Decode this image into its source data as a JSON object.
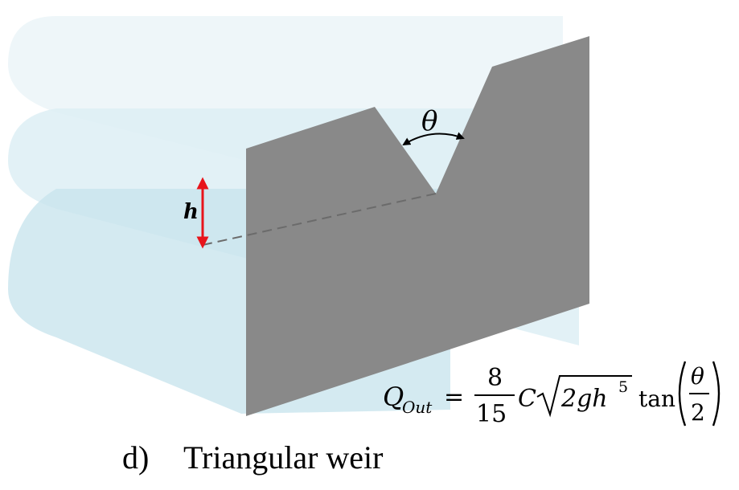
{
  "diagram": {
    "label_h": "h",
    "label_theta": "θ",
    "formula": {
      "lhs_symbol": "Q",
      "lhs_subscript": "Out",
      "equals": "=",
      "numerator": "8",
      "denominator": "15",
      "coefficient": "C",
      "radicand": "2gh",
      "radicand_exponent": "5",
      "function": "tan",
      "arg_numerator": "θ",
      "arg_denominator": "2"
    },
    "caption_index": "d)",
    "caption_text": "Triangular weir"
  },
  "colors": {
    "plate": "#898989",
    "water_light": "#eef6f9",
    "water_mid": "#ddeef4",
    "water_dark": "#c9e5ee",
    "arrow_red": "#e8141b"
  }
}
